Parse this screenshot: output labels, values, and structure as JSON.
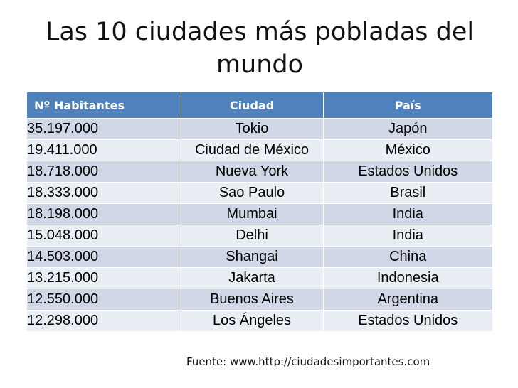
{
  "title": "Las 10 ciudades más pobladas del mundo",
  "table": {
    "headers": [
      "Nº Habitantes",
      "Ciudad",
      "País"
    ],
    "rows": [
      [
        "35.197.000",
        "Tokio",
        "Japón"
      ],
      [
        "19.411.000",
        "Ciudad de México",
        "México"
      ],
      [
        "18.718.000",
        "Nueva York",
        "Estados Unidos"
      ],
      [
        "18.333.000",
        "Sao Paulo",
        "Brasil"
      ],
      [
        "18.198.000",
        "Mumbai",
        "India"
      ],
      [
        "15.048.000",
        "Delhi",
        "India"
      ],
      [
        "14.503.000",
        "Shangai",
        "China"
      ],
      [
        "13.215.000",
        "Jakarta",
        "Indonesia"
      ],
      [
        "12.550.000",
        "Buenos Aires",
        "Argentina"
      ],
      [
        "12.298.000",
        "Los Ángeles",
        "Estados Unidos"
      ]
    ]
  },
  "source": "Fuente: www.http://ciudadesimportantes.com",
  "colors": {
    "header": "#4f81bd",
    "row_odd": "#d0d8e8",
    "row_even": "#e9edf4"
  }
}
